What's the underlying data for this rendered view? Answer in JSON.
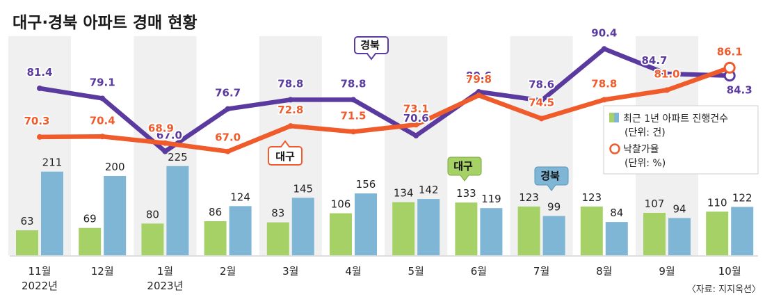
{
  "chart_data": {
    "type": "bar+line",
    "title": "대구·경북 아파트 경매 현황",
    "categories": [
      "11월",
      "12월",
      "1월",
      "2월",
      "3월",
      "4월",
      "5월",
      "6월",
      "7월",
      "8월",
      "9월",
      "10월"
    ],
    "year_labels": [
      "2022년",
      "",
      "2023년",
      "",
      "",
      "",
      "",
      "",
      "",
      "",
      "",
      ""
    ],
    "bar_series": [
      {
        "name": "대구",
        "color": "#a6d166",
        "values": [
          63,
          69,
          80,
          86,
          83,
          106,
          134,
          133,
          123,
          123,
          107,
          110
        ]
      },
      {
        "name": "경북",
        "color": "#7fb6d6",
        "values": [
          211,
          200,
          225,
          124,
          145,
          156,
          142,
          119,
          99,
          84,
          94,
          122
        ]
      }
    ],
    "line_series": [
      {
        "name": "경북",
        "color": "#5b3aa0",
        "values": [
          81.4,
          79.1,
          67.0,
          76.7,
          78.8,
          78.8,
          70.6,
          80.6,
          78.6,
          90.4,
          84.7,
          84.3
        ]
      },
      {
        "name": "대구",
        "color": "#ef5b2a",
        "values": [
          70.3,
          70.4,
          68.9,
          67.0,
          72.8,
          71.5,
          73.1,
          79.8,
          74.5,
          78.8,
          81.0,
          86.1
        ]
      }
    ],
    "bar_value_labels": {
      "daegu": [
        "63",
        "69",
        "80",
        "86",
        "83",
        "106",
        "134",
        "133",
        "123",
        "123",
        "107",
        "110"
      ],
      "gyeongbuk": [
        "211",
        "200",
        "225",
        "124",
        "145",
        "156",
        "142",
        "119",
        "99",
        "84",
        "94",
        "122"
      ]
    },
    "line_value_labels": {
      "gyeongbuk": [
        "81.4",
        "79.1",
        "67.0",
        "76.7",
        "78.8",
        "78.8",
        "70.6",
        "80.6",
        "78.6",
        "90.4",
        "84.7",
        "84.3"
      ],
      "daegu": [
        "70.3",
        "70.4",
        "68.9",
        "67.0",
        "72.8",
        "71.5",
        "73.1",
        "79.8",
        "74.5",
        "78.8",
        "81.0",
        "86.1"
      ]
    },
    "callouts": {
      "line_gyeongbuk": "경북",
      "line_daegu": "대구",
      "bar_daegu": "대구",
      "bar_gyeongbuk": "경북"
    },
    "legend": {
      "bars_title": "최근 1년 아파트 진행건수",
      "bars_unit": "(단위: 건)",
      "line_title": "낙찰가율",
      "line_unit": "(단위: %)",
      "placement": "right"
    },
    "source": "〈자료: 지지옥션〉",
    "bar_ylim": [
      0,
      300
    ],
    "line_ylim": [
      60,
      95
    ],
    "colors": {
      "band": "#f0f0f0",
      "legend_bg": "#ffffff"
    }
  }
}
